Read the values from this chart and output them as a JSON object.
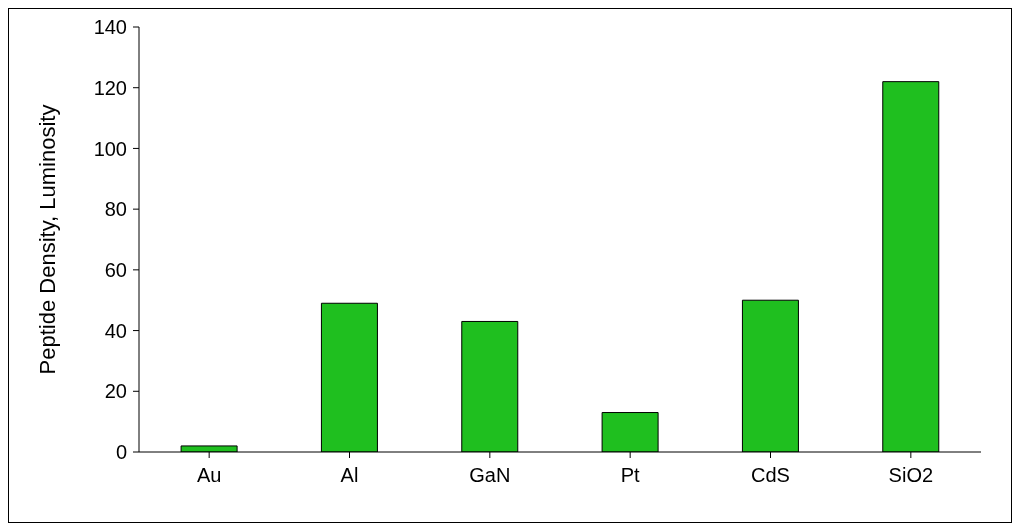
{
  "chart_data": {
    "type": "bar",
    "ylabel": "Peptide Density, Luminosity",
    "categories": [
      "Au",
      "Al",
      "GaN",
      "Pt",
      "CdS",
      "SiO2"
    ],
    "values": [
      2,
      49,
      43,
      13,
      50,
      122
    ],
    "color": "#1fbf1f",
    "ylim": [
      0,
      140
    ],
    "yticks": [
      0,
      20,
      40,
      60,
      80,
      100,
      120,
      140
    ],
    "grid": false,
    "legend": false
  }
}
